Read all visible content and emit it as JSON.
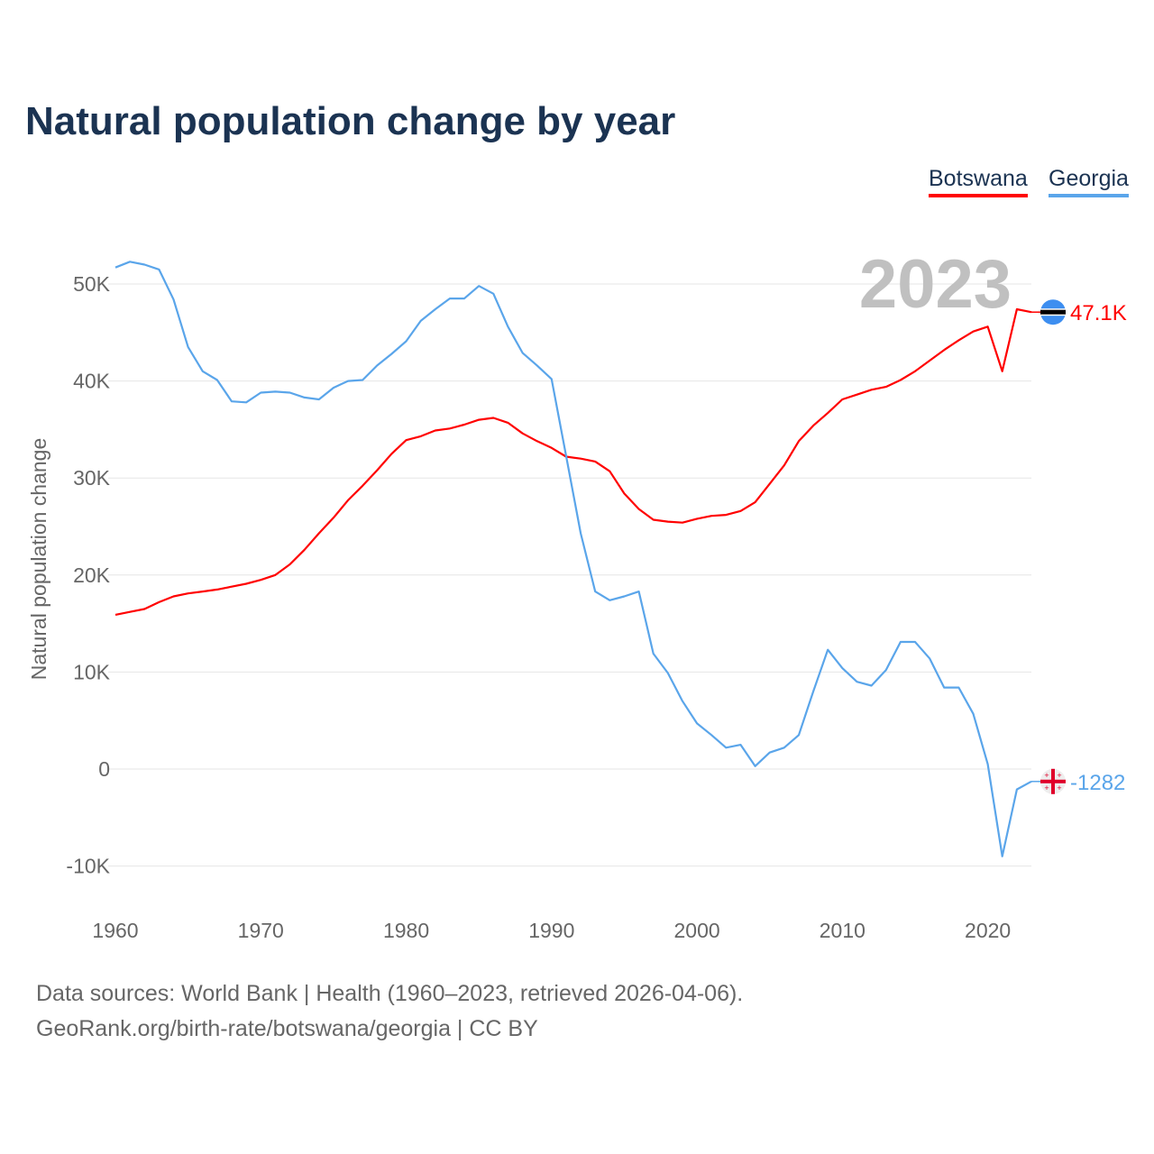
{
  "chart_data": {
    "type": "line",
    "title": "Natural population change by year",
    "xlabel": "",
    "ylabel": "Natural population change",
    "xlim": [
      1960,
      2023
    ],
    "ylim": [
      -10000,
      50000
    ],
    "grid": true,
    "legend_position": "top-right",
    "year_label": "2023",
    "x_ticks": [
      1960,
      1970,
      1980,
      1990,
      2000,
      2010,
      2020
    ],
    "x_tick_labels": [
      "1960",
      "1970",
      "1980",
      "1990",
      "2000",
      "2010",
      "2020"
    ],
    "y_ticks": [
      -10000,
      0,
      10000,
      20000,
      30000,
      40000,
      50000
    ],
    "y_tick_labels": [
      "-10K",
      "0",
      "10K",
      "20K",
      "30K",
      "40K",
      "50K"
    ],
    "x": [
      1960,
      1961,
      1962,
      1963,
      1964,
      1965,
      1966,
      1967,
      1968,
      1969,
      1970,
      1971,
      1972,
      1973,
      1974,
      1975,
      1976,
      1977,
      1978,
      1979,
      1980,
      1981,
      1982,
      1983,
      1984,
      1985,
      1986,
      1987,
      1988,
      1989,
      1990,
      1991,
      1992,
      1993,
      1994,
      1995,
      1996,
      1997,
      1998,
      1999,
      2000,
      2001,
      2002,
      2003,
      2004,
      2005,
      2006,
      2007,
      2008,
      2009,
      2010,
      2011,
      2012,
      2013,
      2014,
      2015,
      2016,
      2017,
      2018,
      2019,
      2020,
      2021,
      2022,
      2023
    ],
    "series": [
      {
        "name": "Botswana",
        "color": "#ff0000",
        "end_label": "47.1K",
        "values": [
          15900,
          16200,
          16500,
          17200,
          17800,
          18100,
          18300,
          18500,
          18800,
          19100,
          19500,
          20000,
          21100,
          22600,
          24300,
          25900,
          27700,
          29200,
          30800,
          32500,
          33900,
          34300,
          34900,
          35100,
          35500,
          36000,
          36200,
          35700,
          34600,
          33800,
          33100,
          32200,
          32000,
          31700,
          30700,
          28400,
          26800,
          25700,
          25500,
          25400,
          25800,
          26100,
          26200,
          26600,
          27500,
          29400,
          31300,
          33800,
          35400,
          36700,
          38100,
          38600,
          39100,
          39400,
          40100,
          41000,
          42100,
          43200,
          44200,
          45100,
          45600,
          41000,
          47400,
          47100
        ]
      },
      {
        "name": "Georgia",
        "color": "#5aa5ea",
        "end_label": "-1282",
        "values": [
          51700,
          52300,
          52000,
          51500,
          48400,
          43500,
          41000,
          40100,
          37900,
          37800,
          38800,
          38900,
          38800,
          38300,
          38100,
          39300,
          40000,
          40100,
          41600,
          42800,
          44100,
          46200,
          47400,
          48500,
          48500,
          49800,
          49000,
          45600,
          42900,
          41600,
          40200,
          32300,
          24300,
          18300,
          17400,
          17800,
          18300,
          11900,
          9900,
          7000,
          4700,
          3500,
          2200,
          2500,
          300,
          1700,
          2200,
          3500,
          8000,
          12300,
          10400,
          9000,
          8600,
          10200,
          13100,
          13100,
          11400,
          8400,
          8400,
          5700,
          500,
          -9000,
          -2100,
          -1282
        ]
      }
    ]
  },
  "footer": {
    "line1": "Data sources: World Bank | Health (1960–2023, retrieved 2026-04-06).",
    "line2": "GeoRank.org/birth-rate/botswana/georgia | CC BY"
  }
}
